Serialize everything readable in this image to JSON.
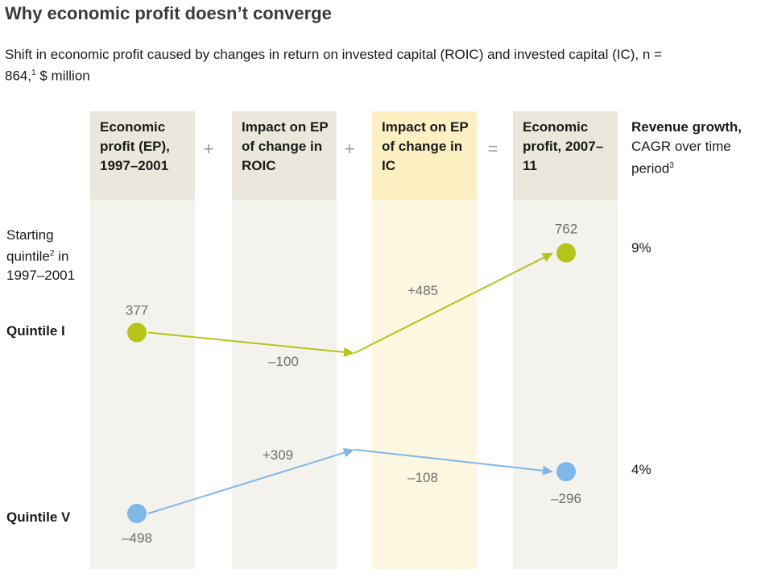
{
  "title": "Why economic profit doesn’t converge",
  "subtitle": "Shift in economic profit caused by changes in return on invested capital (ROIC) and invested capital (IC), n = 864,",
  "subtitle_sup": "1",
  "subtitle_tail": " $ million",
  "columns": [
    {
      "label": "Economic profit (EP), 1997–2001"
    },
    {
      "label": "Impact on EP of change in ROIC"
    },
    {
      "label": "Impact on EP of change in IC"
    },
    {
      "label": "Economic profit, 2007–11"
    }
  ],
  "operators": [
    "+",
    "+",
    "="
  ],
  "revenue_header": {
    "bold": "Revenue growth,",
    "rest": " CAGR over time period",
    "sup": "3"
  },
  "row_label": {
    "pre": "Starting quintile",
    "sup": "2",
    "post": " in 1997–2001"
  },
  "colors": {
    "quintile_1": "#b5c41a",
    "quintile_5": "#7fb7e6"
  },
  "chart_data": {
    "type": "line",
    "categories": [
      "Economic profit (EP), 1997–2001",
      "Impact on EP of change in ROIC",
      "Impact on EP of change in IC",
      "Economic profit, 2007–11"
    ],
    "series": [
      {
        "name": "Quintile I",
        "start": 377,
        "roic_change": -100,
        "ic_change": 485,
        "end": 762,
        "cumulative": [
          377,
          277,
          762
        ],
        "labels": [
          "377",
          "–100",
          "+485",
          "762"
        ],
        "revenue_growth": "9%"
      },
      {
        "name": "Quintile V",
        "start": -498,
        "roic_change": 309,
        "ic_change": -108,
        "end": -296,
        "cumulative": [
          -498,
          -189,
          -296
        ],
        "labels": [
          "–498",
          "+309",
          "–108",
          "–296"
        ],
        "revenue_growth": "4%"
      }
    ]
  }
}
